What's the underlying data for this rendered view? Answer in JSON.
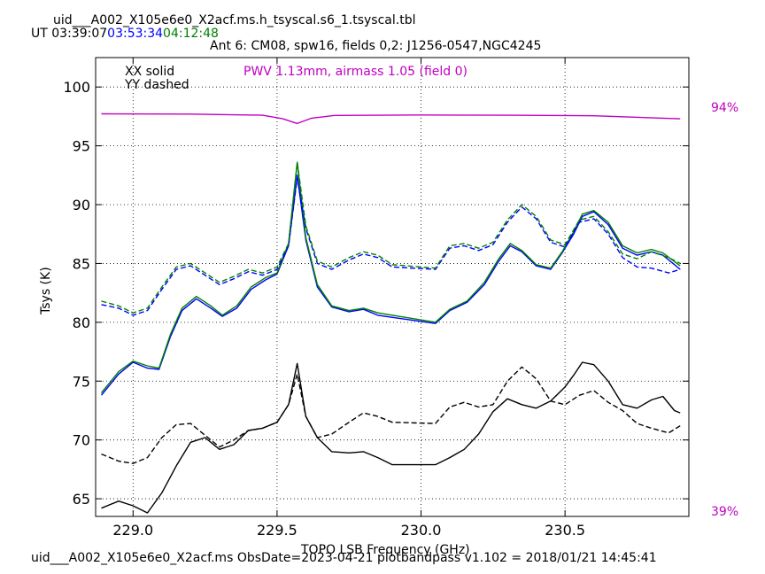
{
  "header": {
    "filename": "uid___A002_X105e6e0_X2acf.ms.h_tsyscal.s6_1.tsyscal.tbl",
    "ut_label": "UT",
    "times": [
      {
        "text": "03:39:07",
        "color": "#000000"
      },
      {
        "text": "03:53:34",
        "color": "#0000ff"
      },
      {
        "text": "04:12:48",
        "color": "#008000"
      }
    ],
    "subtitle": "Ant 6: CM08,  spw16,  fields 0,2: J1256-0547,NGC4245"
  },
  "legend": {
    "xx": "XX solid",
    "yy": "YY dashed",
    "pwv": "PWV 1.13mm, airmass 1.05 (field 0)",
    "pwv_color": "#c000c0"
  },
  "footer": "uid___A002_X105e6e0_X2acf.ms  ObsDate=2023-04-21   plotbandpass v1.102 = 2018/01/21 14:45:41",
  "chart_data": {
    "type": "line",
    "xlabel": "TOPO LSB Frequency (GHz)",
    "ylabel": "Tsys (K)",
    "xlim": [
      228.87,
      230.93
    ],
    "ylim": [
      63.5,
      102.5
    ],
    "xticks": [
      229.0,
      229.5,
      230.0,
      230.5
    ],
    "xtick_labels": [
      "229.0",
      "229.5",
      "230.0",
      "230.5"
    ],
    "yticks": [
      65,
      70,
      75,
      80,
      85,
      90,
      95,
      100
    ],
    "ytick_labels": [
      "65",
      "70",
      "75",
      "80",
      "85",
      "90",
      "95",
      "100"
    ],
    "grid": true,
    "right_axis_labels": {
      "top": "94%",
      "bottom": "39%",
      "color": "#c000c0"
    },
    "series": [
      {
        "pol": "XX",
        "style": "solid",
        "color": "#0000ff",
        "points": [
          [
            228.89,
            73.8
          ],
          [
            228.95,
            75.6
          ],
          [
            229.0,
            76.6
          ],
          [
            229.05,
            76.1
          ],
          [
            229.09,
            76.0
          ],
          [
            229.13,
            78.8
          ],
          [
            229.17,
            81.0
          ],
          [
            229.22,
            82.0
          ],
          [
            229.27,
            81.2
          ],
          [
            229.31,
            80.5
          ],
          [
            229.36,
            81.2
          ],
          [
            229.41,
            82.8
          ],
          [
            229.46,
            83.6
          ],
          [
            229.5,
            84.1
          ],
          [
            229.54,
            86.5
          ],
          [
            229.57,
            92.5
          ],
          [
            229.6,
            87.0
          ],
          [
            229.64,
            83.0
          ],
          [
            229.69,
            81.3
          ],
          [
            229.75,
            80.9
          ],
          [
            229.8,
            81.1
          ],
          [
            229.85,
            80.6
          ],
          [
            230.05,
            79.9
          ],
          [
            230.1,
            81.0
          ],
          [
            230.16,
            81.7
          ],
          [
            230.22,
            83.2
          ],
          [
            230.27,
            85.2
          ],
          [
            230.31,
            86.5
          ],
          [
            230.35,
            86.0
          ],
          [
            230.4,
            84.8
          ],
          [
            230.45,
            84.5
          ],
          [
            230.49,
            85.9
          ],
          [
            230.53,
            87.5
          ],
          [
            230.56,
            89.0
          ],
          [
            230.6,
            89.4
          ],
          [
            230.65,
            88.3
          ],
          [
            230.7,
            86.3
          ],
          [
            230.75,
            85.7
          ],
          [
            230.8,
            86.0
          ],
          [
            230.84,
            85.7
          ],
          [
            230.9,
            84.5
          ]
        ]
      },
      {
        "pol": "XX",
        "style": "solid",
        "color": "#008000",
        "points": [
          [
            228.89,
            74.0
          ],
          [
            228.95,
            75.8
          ],
          [
            229.0,
            76.7
          ],
          [
            229.05,
            76.3
          ],
          [
            229.09,
            76.1
          ],
          [
            229.13,
            79.0
          ],
          [
            229.17,
            81.2
          ],
          [
            229.22,
            82.2
          ],
          [
            229.27,
            81.4
          ],
          [
            229.31,
            80.6
          ],
          [
            229.36,
            81.4
          ],
          [
            229.41,
            83.0
          ],
          [
            229.46,
            83.8
          ],
          [
            229.5,
            84.2
          ],
          [
            229.54,
            86.7
          ],
          [
            229.57,
            93.6
          ],
          [
            229.6,
            87.2
          ],
          [
            229.64,
            83.2
          ],
          [
            229.69,
            81.4
          ],
          [
            229.75,
            81.0
          ],
          [
            229.8,
            81.2
          ],
          [
            229.85,
            80.8
          ],
          [
            230.05,
            80.0
          ],
          [
            230.1,
            81.1
          ],
          [
            230.16,
            81.8
          ],
          [
            230.22,
            83.4
          ],
          [
            230.27,
            85.4
          ],
          [
            230.31,
            86.7
          ],
          [
            230.35,
            86.1
          ],
          [
            230.4,
            84.9
          ],
          [
            230.45,
            84.6
          ],
          [
            230.49,
            86.0
          ],
          [
            230.53,
            87.7
          ],
          [
            230.56,
            89.2
          ],
          [
            230.6,
            89.5
          ],
          [
            230.65,
            88.5
          ],
          [
            230.7,
            86.5
          ],
          [
            230.75,
            85.9
          ],
          [
            230.8,
            86.2
          ],
          [
            230.84,
            85.9
          ],
          [
            230.9,
            84.8
          ]
        ]
      },
      {
        "pol": "YY",
        "style": "dashed",
        "color": "#0000ff",
        "points": [
          [
            228.89,
            81.5
          ],
          [
            228.95,
            81.2
          ],
          [
            229.0,
            80.6
          ],
          [
            229.05,
            81.0
          ],
          [
            229.1,
            82.8
          ],
          [
            229.15,
            84.5
          ],
          [
            229.2,
            84.8
          ],
          [
            229.25,
            84.0
          ],
          [
            229.3,
            83.2
          ],
          [
            229.35,
            83.7
          ],
          [
            229.4,
            84.3
          ],
          [
            229.45,
            84.0
          ],
          [
            229.5,
            84.5
          ],
          [
            229.54,
            86.5
          ],
          [
            229.57,
            92.3
          ],
          [
            229.6,
            88.0
          ],
          [
            229.64,
            85.0
          ],
          [
            229.69,
            84.5
          ],
          [
            229.75,
            85.3
          ],
          [
            229.8,
            85.8
          ],
          [
            229.85,
            85.5
          ],
          [
            229.9,
            84.7
          ],
          [
            230.05,
            84.5
          ],
          [
            230.1,
            86.3
          ],
          [
            230.15,
            86.5
          ],
          [
            230.2,
            86.1
          ],
          [
            230.25,
            86.6
          ],
          [
            230.3,
            88.5
          ],
          [
            230.35,
            89.8
          ],
          [
            230.4,
            88.8
          ],
          [
            230.45,
            86.8
          ],
          [
            230.5,
            86.4
          ],
          [
            230.55,
            88.5
          ],
          [
            230.6,
            88.8
          ],
          [
            230.65,
            87.5
          ],
          [
            230.7,
            85.5
          ],
          [
            230.75,
            84.7
          ],
          [
            230.8,
            84.6
          ],
          [
            230.86,
            84.2
          ],
          [
            230.9,
            84.5
          ]
        ]
      },
      {
        "pol": "YY",
        "style": "dashed",
        "color": "#008000",
        "points": [
          [
            228.89,
            81.8
          ],
          [
            228.95,
            81.4
          ],
          [
            229.0,
            80.8
          ],
          [
            229.05,
            81.2
          ],
          [
            229.1,
            83.0
          ],
          [
            229.15,
            84.7
          ],
          [
            229.2,
            85.0
          ],
          [
            229.25,
            84.2
          ],
          [
            229.3,
            83.4
          ],
          [
            229.35,
            83.9
          ],
          [
            229.4,
            84.5
          ],
          [
            229.45,
            84.2
          ],
          [
            229.5,
            84.7
          ],
          [
            229.54,
            86.7
          ],
          [
            229.57,
            93.6
          ],
          [
            229.6,
            88.2
          ],
          [
            229.64,
            85.2
          ],
          [
            229.69,
            84.7
          ],
          [
            229.75,
            85.5
          ],
          [
            229.8,
            86.0
          ],
          [
            229.85,
            85.7
          ],
          [
            229.9,
            84.9
          ],
          [
            230.05,
            84.6
          ],
          [
            230.1,
            86.5
          ],
          [
            230.15,
            86.7
          ],
          [
            230.2,
            86.3
          ],
          [
            230.25,
            86.8
          ],
          [
            230.3,
            88.7
          ],
          [
            230.35,
            90.0
          ],
          [
            230.4,
            89.0
          ],
          [
            230.45,
            87.0
          ],
          [
            230.5,
            86.6
          ],
          [
            230.55,
            88.7
          ],
          [
            230.6,
            89.0
          ],
          [
            230.65,
            87.7
          ],
          [
            230.7,
            85.8
          ],
          [
            230.75,
            85.4
          ],
          [
            230.8,
            86.0
          ],
          [
            230.86,
            85.5
          ],
          [
            230.9,
            85.0
          ]
        ]
      },
      {
        "pol": "XX",
        "style": "solid",
        "color": "#000000",
        "points": [
          [
            228.89,
            64.2
          ],
          [
            228.95,
            64.8
          ],
          [
            229.0,
            64.4
          ],
          [
            229.05,
            63.8
          ],
          [
            229.1,
            65.5
          ],
          [
            229.15,
            67.8
          ],
          [
            229.2,
            69.8
          ],
          [
            229.25,
            70.2
          ],
          [
            229.3,
            69.2
          ],
          [
            229.35,
            69.6
          ],
          [
            229.4,
            70.8
          ],
          [
            229.45,
            71.0
          ],
          [
            229.5,
            71.5
          ],
          [
            229.54,
            73.0
          ],
          [
            229.57,
            76.5
          ],
          [
            229.6,
            72.0
          ],
          [
            229.64,
            70.2
          ],
          [
            229.69,
            69.0
          ],
          [
            229.75,
            68.9
          ],
          [
            229.8,
            69.0
          ],
          [
            229.85,
            68.5
          ],
          [
            229.9,
            67.9
          ],
          [
            230.05,
            67.9
          ],
          [
            230.1,
            68.5
          ],
          [
            230.15,
            69.2
          ],
          [
            230.2,
            70.5
          ],
          [
            230.25,
            72.4
          ],
          [
            230.3,
            73.5
          ],
          [
            230.35,
            73.0
          ],
          [
            230.4,
            72.7
          ],
          [
            230.45,
            73.3
          ],
          [
            230.5,
            74.5
          ],
          [
            230.53,
            75.5
          ],
          [
            230.56,
            76.6
          ],
          [
            230.6,
            76.4
          ],
          [
            230.65,
            75.0
          ],
          [
            230.7,
            73.0
          ],
          [
            230.75,
            72.7
          ],
          [
            230.8,
            73.4
          ],
          [
            230.84,
            73.7
          ],
          [
            230.88,
            72.5
          ],
          [
            230.9,
            72.3
          ]
        ]
      },
      {
        "pol": "YY",
        "style": "dashed",
        "color": "#000000",
        "points": [
          [
            228.89,
            68.8
          ],
          [
            228.95,
            68.2
          ],
          [
            229.0,
            68.0
          ],
          [
            229.05,
            68.5
          ],
          [
            229.1,
            70.2
          ],
          [
            229.15,
            71.3
          ],
          [
            229.2,
            71.4
          ],
          [
            229.25,
            70.4
          ],
          [
            229.3,
            69.4
          ],
          [
            229.35,
            70.0
          ],
          [
            229.4,
            70.8
          ],
          [
            229.45,
            71.0
          ],
          [
            229.5,
            71.5
          ],
          [
            229.54,
            73.0
          ],
          [
            229.57,
            75.6
          ],
          [
            229.6,
            72.0
          ],
          [
            229.64,
            70.2
          ],
          [
            229.69,
            70.5
          ],
          [
            229.75,
            71.5
          ],
          [
            229.8,
            72.3
          ],
          [
            229.85,
            72.0
          ],
          [
            229.9,
            71.5
          ],
          [
            230.05,
            71.4
          ],
          [
            230.1,
            72.8
          ],
          [
            230.15,
            73.2
          ],
          [
            230.2,
            72.8
          ],
          [
            230.25,
            73.0
          ],
          [
            230.3,
            75.0
          ],
          [
            230.35,
            76.2
          ],
          [
            230.4,
            75.2
          ],
          [
            230.45,
            73.3
          ],
          [
            230.5,
            73.0
          ],
          [
            230.55,
            73.8
          ],
          [
            230.6,
            74.2
          ],
          [
            230.65,
            73.2
          ],
          [
            230.7,
            72.5
          ],
          [
            230.75,
            71.4
          ],
          [
            230.8,
            71.0
          ],
          [
            230.86,
            70.6
          ],
          [
            230.9,
            71.2
          ]
        ]
      },
      {
        "pol": "PWV",
        "style": "solid",
        "color": "#c000c0",
        "points": [
          [
            228.89,
            97.72
          ],
          [
            229.2,
            97.7
          ],
          [
            229.45,
            97.6
          ],
          [
            229.52,
            97.3
          ],
          [
            229.57,
            96.9
          ],
          [
            229.62,
            97.35
          ],
          [
            229.7,
            97.58
          ],
          [
            230.0,
            97.62
          ],
          [
            230.3,
            97.6
          ],
          [
            230.6,
            97.55
          ],
          [
            230.9,
            97.3
          ]
        ]
      }
    ]
  }
}
